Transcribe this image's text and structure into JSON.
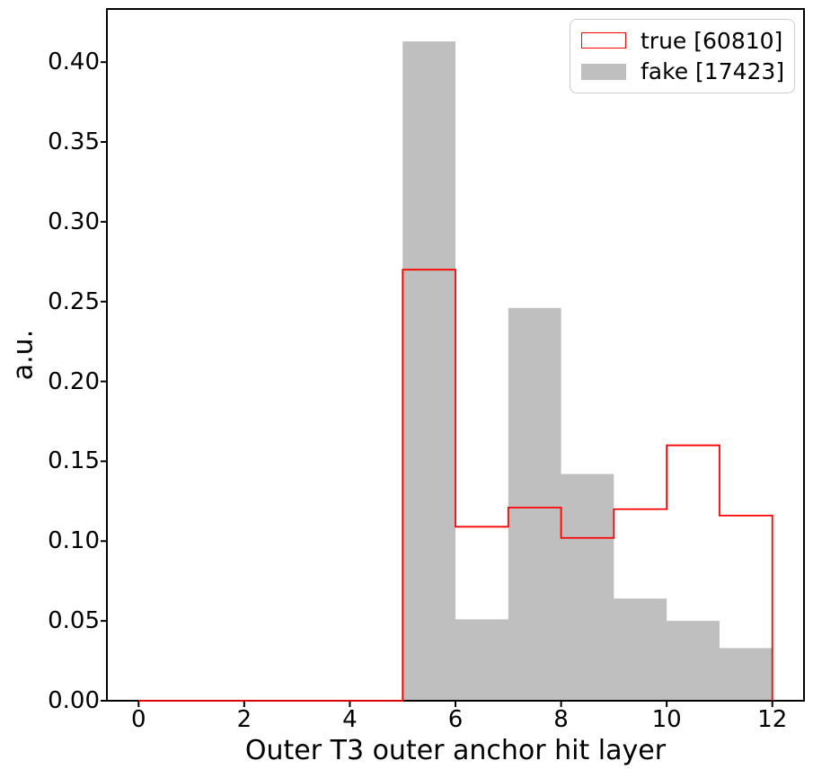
{
  "chart_data": {
    "type": "histogram",
    "xlabel": "Outer T3 outer anchor hit layer",
    "ylabel": "a.u.",
    "bin_edges": [
      0,
      1,
      2,
      3,
      4,
      5,
      6,
      7,
      8,
      9,
      10,
      11,
      12
    ],
    "series": [
      {
        "name": "fake",
        "legend": "fake [17423]",
        "histtype": "filled",
        "color": "#bfbfbf",
        "values": [
          0,
          0,
          0,
          0,
          0,
          0.413,
          0.051,
          0.246,
          0.142,
          0.064,
          0.05,
          0.033
        ]
      },
      {
        "name": "true",
        "legend": "true [60810]",
        "histtype": "step-outline",
        "color": "#ff0000",
        "values": [
          0,
          0,
          0,
          0,
          0,
          0.27,
          0.109,
          0.121,
          0.102,
          0.12,
          0.16,
          0.116
        ]
      }
    ],
    "xlim": [
      -0.6,
      12.6
    ],
    "ylim": [
      0,
      0.4333
    ],
    "x_ticks": [
      {
        "value": 0,
        "label": "0"
      },
      {
        "value": 2,
        "label": "2"
      },
      {
        "value": 4,
        "label": "4"
      },
      {
        "value": 6,
        "label": "6"
      },
      {
        "value": 8,
        "label": "8"
      },
      {
        "value": 10,
        "label": "10"
      },
      {
        "value": 12,
        "label": "12"
      }
    ],
    "y_ticks": [
      {
        "value": 0.0,
        "label": "0.00"
      },
      {
        "value": 0.05,
        "label": "0.05"
      },
      {
        "value": 0.1,
        "label": "0.10"
      },
      {
        "value": 0.15,
        "label": "0.15"
      },
      {
        "value": 0.2,
        "label": "0.20"
      },
      {
        "value": 0.25,
        "label": "0.25"
      },
      {
        "value": 0.3,
        "label": "0.30"
      },
      {
        "value": 0.35,
        "label": "0.35"
      },
      {
        "value": 0.4,
        "label": "0.40"
      }
    ],
    "legend_position": "upper right",
    "grid": false,
    "axis_color": "#000000"
  }
}
